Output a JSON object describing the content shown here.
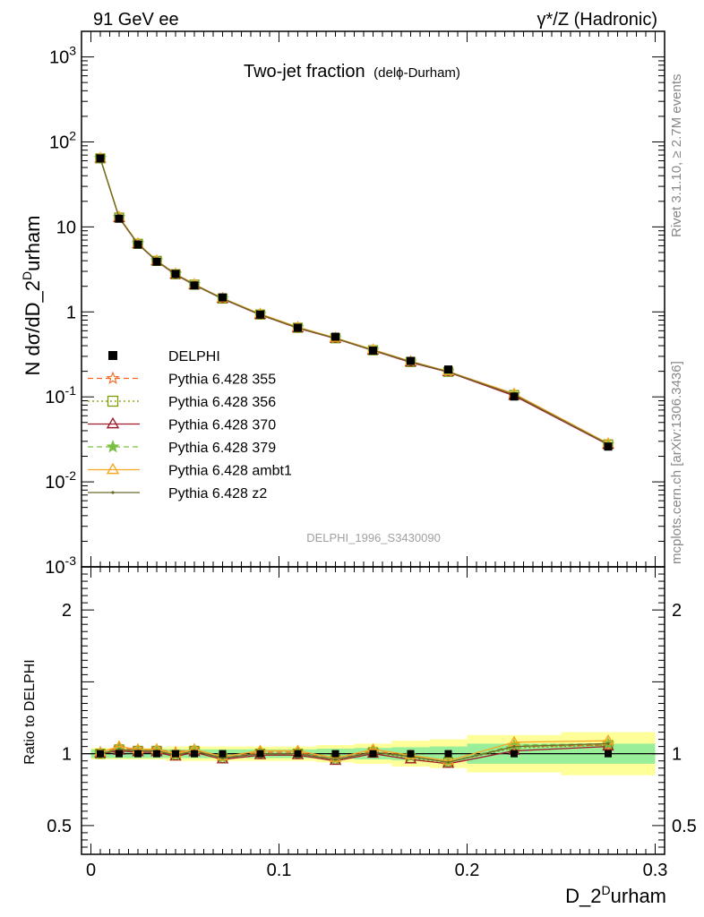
{
  "header": {
    "left": "91 GeV ee",
    "right": "γ*/Z (Hadronic)"
  },
  "side_labels": {
    "top": "Rivet 3.1.10, ≥ 2.7M events",
    "bottom": "mcplots.cern.ch [arXiv:1306.3436]"
  },
  "chart_data": {
    "type": "line",
    "title_main": "Two-jet fraction",
    "title_sub": "(delϕ-Durham)",
    "watermark": "DELPHI_1996_S3430090",
    "xlabel": "D_2^Durham",
    "ylabel": "N dσ/dD_2^Durham",
    "ratio_ylabel": "Ratio to DELPHI",
    "xlim": [
      -0.005,
      0.305
    ],
    "ylim": [
      0.001,
      2000
    ],
    "ylog": true,
    "ratio_ylim": [
      0.3,
      2.3
    ],
    "x_ticks": [
      "0",
      "0.1",
      "0.2",
      "0.3"
    ],
    "y_ticks": [
      "10^3",
      "10^2",
      "10",
      "1",
      "10^-1",
      "10^-2",
      "10^-3"
    ],
    "ratio_ticks": [
      "2",
      "1",
      "0.5"
    ],
    "legend_position": "left-middle",
    "x": [
      0.005,
      0.015,
      0.025,
      0.035,
      0.045,
      0.055,
      0.07,
      0.09,
      0.11,
      0.13,
      0.15,
      0.17,
      0.19,
      0.225,
      0.275
    ],
    "bin_edges": [
      0.0,
      0.01,
      0.02,
      0.03,
      0.04,
      0.05,
      0.06,
      0.08,
      0.1,
      0.12,
      0.14,
      0.16,
      0.18,
      0.2,
      0.25,
      0.3
    ],
    "data": {
      "name": "DELPHI",
      "values": [
        64.0,
        12.5,
        6.2,
        3.9,
        2.8,
        2.05,
        1.48,
        0.93,
        0.65,
        0.51,
        0.35,
        0.265,
        0.21,
        0.101,
        0.026
      ],
      "band_inner": [
        0.03,
        0.03,
        0.03,
        0.03,
        0.03,
        0.03,
        0.03,
        0.03,
        0.03,
        0.035,
        0.04,
        0.045,
        0.05,
        0.07,
        0.07
      ],
      "band_outer": [
        0.04,
        0.04,
        0.04,
        0.04,
        0.05,
        0.05,
        0.05,
        0.05,
        0.05,
        0.06,
        0.07,
        0.09,
        0.1,
        0.13,
        0.15
      ]
    },
    "series": [
      {
        "name": "Pythia 6.428 355",
        "color": "#f26522",
        "dash": "6,4",
        "marker": "star-open",
        "ratio": [
          1.01,
          1.04,
          1.03,
          1.03,
          1.01,
          1.03,
          0.97,
          1.01,
          1.01,
          0.96,
          1.02,
          0.98,
          0.94,
          1.05,
          1.06
        ]
      },
      {
        "name": "Pythia 6.428 356",
        "color": "#7a9a01",
        "dash": "2,3",
        "marker": "square-open",
        "ratio": [
          1.0,
          1.03,
          1.02,
          1.02,
          0.99,
          1.02,
          0.97,
          1.0,
          1.0,
          0.96,
          1.01,
          0.97,
          0.94,
          1.04,
          1.06
        ]
      },
      {
        "name": "Pythia 6.428 370",
        "color": "#a01c2c",
        "dash": "",
        "marker": "triangle-open",
        "ratio": [
          1.0,
          1.02,
          1.01,
          1.01,
          0.98,
          1.01,
          0.96,
          0.99,
          0.99,
          0.95,
          1.0,
          0.96,
          0.93,
          1.02,
          1.05
        ]
      },
      {
        "name": "Pythia 6.428 379",
        "color": "#7ac143",
        "dash": "6,4",
        "marker": "star",
        "ratio": [
          1.0,
          1.03,
          1.02,
          1.02,
          0.99,
          1.02,
          0.97,
          1.0,
          1.0,
          0.96,
          1.01,
          0.98,
          0.94,
          1.06,
          1.07
        ]
      },
      {
        "name": "Pythia 6.428 ambt1",
        "color": "#f5a623",
        "dash": "",
        "marker": "triangle-open",
        "ratio": [
          1.01,
          1.05,
          1.03,
          1.03,
          1.0,
          1.03,
          0.98,
          1.02,
          1.02,
          0.97,
          1.03,
          0.99,
          0.95,
          1.08,
          1.09
        ]
      },
      {
        "name": "Pythia 6.428 z2",
        "color": "#6b6b2a",
        "dash": "",
        "marker": "dot",
        "ratio": [
          1.0,
          1.03,
          1.02,
          1.02,
          0.99,
          1.02,
          0.97,
          1.0,
          1.0,
          0.96,
          1.01,
          0.98,
          0.94,
          1.05,
          1.07
        ]
      }
    ]
  }
}
